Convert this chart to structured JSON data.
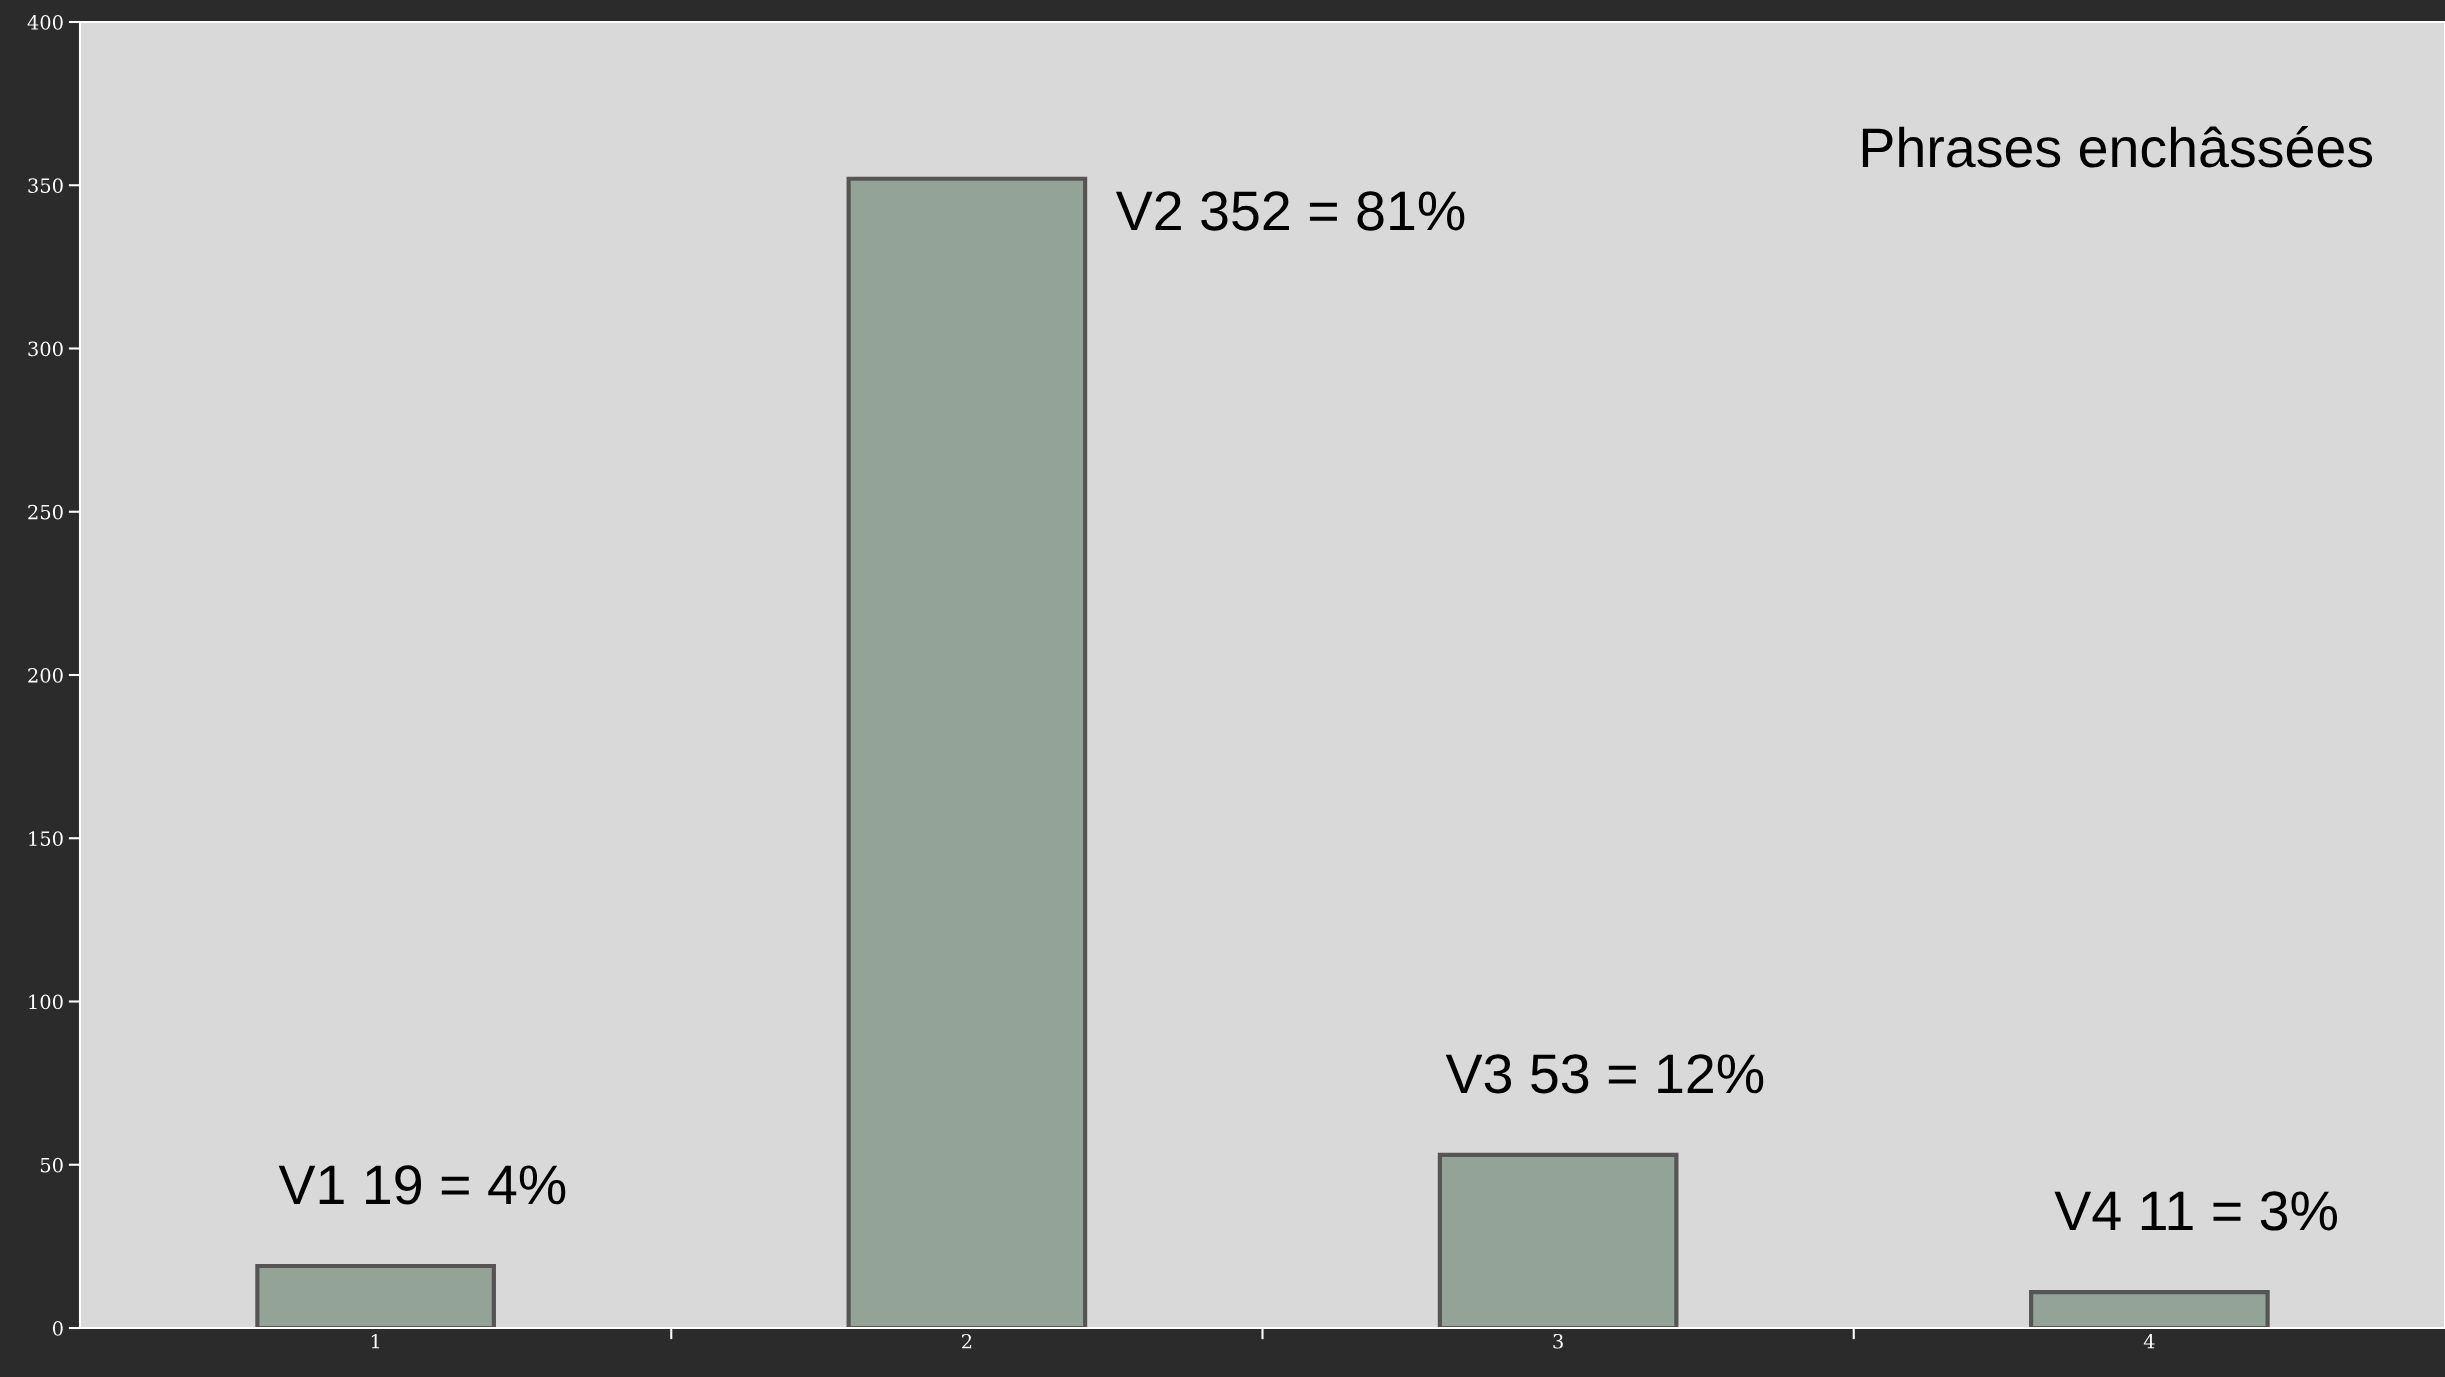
{
  "chart_data": {
    "type": "bar",
    "title": "Phrases enchâssées",
    "categories": [
      "1",
      "2",
      "3",
      "4"
    ],
    "values": [
      19,
      352,
      53,
      11
    ],
    "color": "#93a398",
    "ylim": [
      0,
      400
    ],
    "yticks": [
      0,
      50,
      100,
      150,
      200,
      250,
      300,
      350,
      400
    ],
    "grid": false,
    "legend": false,
    "annotations": [
      {
        "text": "V1 19 = 4%",
        "x": "1",
        "y": 19
      },
      {
        "text": "V2 352 = 81%",
        "x": "2",
        "y": 352
      },
      {
        "text": "V3 53 = 12%",
        "x": "3",
        "y": 53
      },
      {
        "text": "V4 11 = 3%",
        "x": "4",
        "y": 11
      }
    ]
  }
}
